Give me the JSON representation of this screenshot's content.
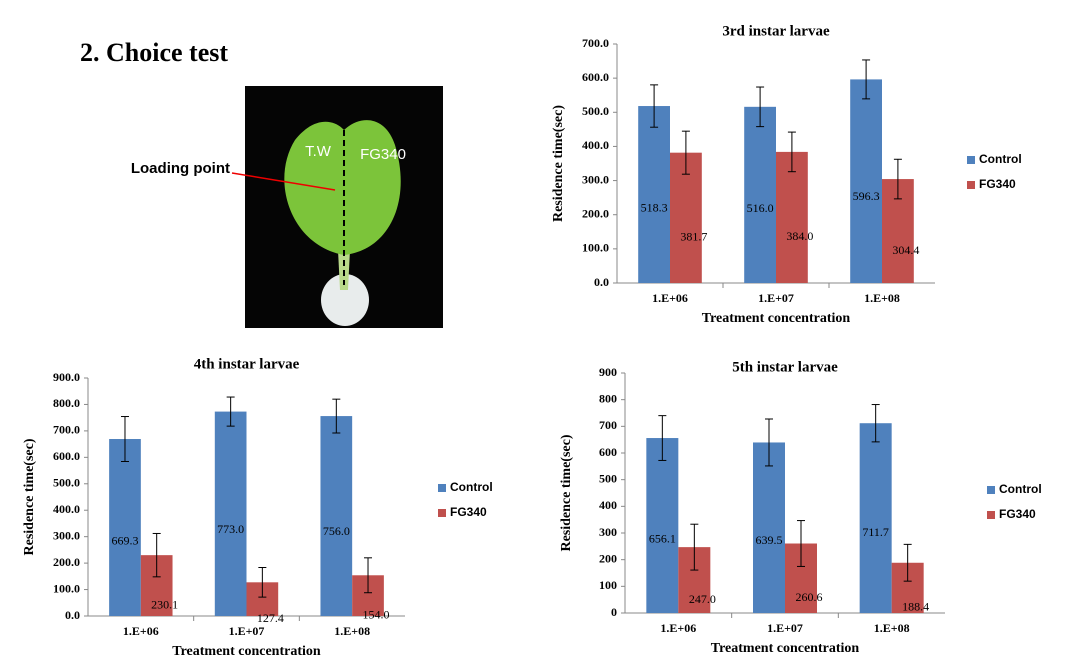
{
  "heading": "2.  Choice test",
  "photo": {
    "left_label": "T.W",
    "right_label": "FG340",
    "pointer_label": "Loading point"
  },
  "chart_data": [
    {
      "type": "bar",
      "title": "3rd instar larvae",
      "x_label": "Treatment concentration",
      "y_label": "Residence time(sec)",
      "categories": [
        "1.E+06",
        "1.E+07",
        "1.E+08"
      ],
      "series": [
        {
          "name": "Control",
          "color": "#4f81bd",
          "values": [
            518.3,
            516.0,
            596.3
          ],
          "value_labels": [
            "518.3",
            "516.0",
            "596.3"
          ],
          "errors": [
            62,
            58,
            57
          ]
        },
        {
          "name": "FG340",
          "color": "#c0504d",
          "values": [
            381.7,
            384.0,
            304.4
          ],
          "value_labels": [
            "381.7",
            "384.0",
            "304.4"
          ],
          "errors": [
            63,
            58,
            58
          ]
        }
      ],
      "ylim": [
        0,
        700
      ],
      "yticks": [
        {
          "value": 0,
          "label": "0.0"
        },
        {
          "value": 100,
          "label": "100.0"
        },
        {
          "value": 200,
          "label": "200.0"
        },
        {
          "value": 300,
          "label": "300.0"
        },
        {
          "value": 400,
          "label": "400.0"
        },
        {
          "value": 500,
          "label": "500.0"
        },
        {
          "value": 600,
          "label": "600.0"
        },
        {
          "value": 700,
          "label": "700.0"
        }
      ],
      "legend": "right"
    },
    {
      "type": "bar",
      "title": "4th instar larvae",
      "x_label": "Treatment concentration",
      "y_label": "Residence time(sec)",
      "categories": [
        "1.E+06",
        "1.E+07",
        "1.E+08"
      ],
      "series": [
        {
          "name": "Control",
          "color": "#4f81bd",
          "values": [
            669.3,
            773.0,
            756.0
          ],
          "value_labels": [
            "669.3",
            "773.0",
            "756.0"
          ],
          "errors": [
            85,
            55,
            64
          ]
        },
        {
          "name": "FG340",
          "color": "#c0504d",
          "values": [
            230.1,
            127.4,
            154.0
          ],
          "value_labels": [
            "230.1",
            "127.4",
            "154.0"
          ],
          "errors": [
            82,
            56,
            66
          ]
        }
      ],
      "ylim": [
        0,
        900
      ],
      "yticks": [
        {
          "value": 0,
          "label": "0.0"
        },
        {
          "value": 100,
          "label": "100.0"
        },
        {
          "value": 200,
          "label": "200.0"
        },
        {
          "value": 300,
          "label": "300.0"
        },
        {
          "value": 400,
          "label": "400.0"
        },
        {
          "value": 500,
          "label": "500.0"
        },
        {
          "value": 600,
          "label": "600.0"
        },
        {
          "value": 700,
          "label": "700.0"
        },
        {
          "value": 800,
          "label": "800.0"
        },
        {
          "value": 900,
          "label": "900.0"
        }
      ],
      "legend": "right"
    },
    {
      "type": "bar",
      "title": "5th instar larvae",
      "x_label": "Treatment concentration",
      "y_label": "Residence time(sec)",
      "categories": [
        "1.E+06",
        "1.E+07",
        "1.E+08"
      ],
      "series": [
        {
          "name": "Control",
          "color": "#4f81bd",
          "values": [
            656.1,
            639.5,
            711.7
          ],
          "errors": [
            84,
            88,
            70
          ]
        },
        {
          "name": "FG340",
          "color": "#c0504d",
          "values": [
            247.0,
            260.6,
            188.4
          ],
          "value_labels": [
            "247.0",
            "260.6",
            "188.4"
          ],
          "errors": [
            86,
            86,
            69
          ]
        }
      ],
      "ylim": [
        0,
        900
      ],
      "yticks": [
        0,
        100,
        200,
        300,
        400,
        500,
        600,
        700,
        800,
        900
      ],
      "legend": "right"
    }
  ]
}
